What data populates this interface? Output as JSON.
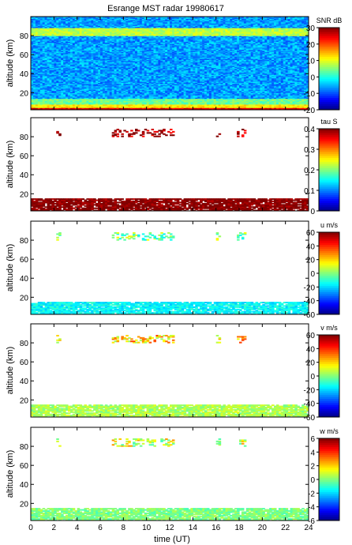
{
  "title": "Esrange MST radar 19980617",
  "xlabel": "time (UT)",
  "chart_data": {
    "type": "heatmap",
    "title": "Esrange MST radar 19980617",
    "xlabel": "time (UT)",
    "xlim": [
      0,
      24
    ],
    "xticks": [
      0,
      2,
      4,
      6,
      8,
      10,
      12,
      14,
      16,
      18,
      20,
      22,
      24
    ],
    "ylim": [
      2,
      100
    ],
    "panels": [
      {
        "ylabel": "altitude (km)",
        "yticks": [
          20,
          40,
          60,
          80
        ],
        "colorbar_label": "SNR dB",
        "clim": [
          -20,
          30
        ],
        "cticks": [
          -20,
          -10,
          0,
          10,
          20,
          30
        ],
        "colormap": "jet",
        "features": [
          {
            "description_values": "background noise",
            "alt_range": [
              2,
              100
            ],
            "level": -6
          },
          {
            "alt_range": [
              2,
              4
            ],
            "level": 25
          },
          {
            "alt_range": [
              4,
              8
            ],
            "level": 12
          },
          {
            "alt_range": [
              8,
              13
            ],
            "level": 4
          },
          {
            "alt_range": [
              80,
              88
            ],
            "level": 8
          }
        ]
      },
      {
        "ylabel": "altitude (km)",
        "yticks": [
          20,
          40,
          60,
          80
        ],
        "colorbar_label": "tau S",
        "clim": [
          0,
          0.4
        ],
        "cticks": [
          0,
          0.1,
          0.2,
          0.3,
          0.4
        ],
        "colormap": "jet",
        "features": [
          {
            "alt_range": [
              2,
              14
            ],
            "level": 0.4
          },
          {
            "alt_range": [
              80,
              88
            ],
            "level": 0.4
          }
        ]
      },
      {
        "ylabel": "altitude (km)",
        "yticks": [
          20,
          40,
          60,
          80
        ],
        "colorbar_label": "u m/s",
        "clim": [
          -60,
          60
        ],
        "cticks": [
          -60,
          -40,
          -20,
          0,
          20,
          40,
          60
        ],
        "colormap": "jet",
        "features": [
          {
            "alt_range": [
              2,
              14
            ],
            "level": -15
          },
          {
            "alt_range": [
              80,
              88
            ],
            "level": 0
          }
        ]
      },
      {
        "ylabel": "altitude (km)",
        "yticks": [
          20,
          40,
          60,
          80
        ],
        "colorbar_label": "v m/s",
        "clim": [
          -60,
          60
        ],
        "cticks": [
          -60,
          -40,
          -20,
          0,
          20,
          40,
          60
        ],
        "colormap": "jet",
        "features": [
          {
            "alt_range": [
              2,
              14
            ],
            "level": 5
          },
          {
            "alt_range": [
              80,
              88
            ],
            "level": 20
          }
        ]
      },
      {
        "ylabel": "altitude (km)",
        "yticks": [
          20,
          40,
          60,
          80
        ],
        "colorbar_label": "w m/s",
        "clim": [
          -6,
          6
        ],
        "cticks": [
          -6,
          -4,
          -2,
          0,
          2,
          4,
          6
        ],
        "colormap": "jet",
        "features": [
          {
            "alt_range": [
              2,
              14
            ],
            "level": 0
          },
          {
            "alt_range": [
              80,
              88
            ],
            "level": 1
          }
        ]
      }
    ]
  }
}
